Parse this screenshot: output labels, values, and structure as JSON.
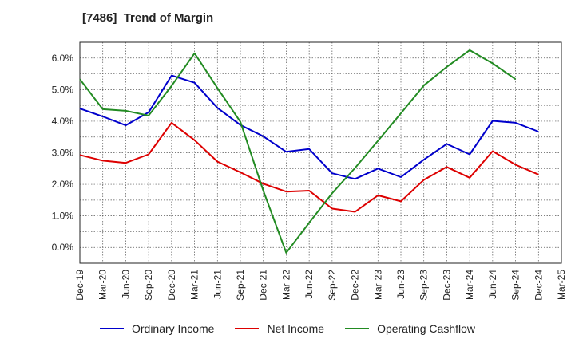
{
  "title": "[7486]  Trend of Margin",
  "chart_data": {
    "type": "line",
    "title": "[7486]  Trend of Margin",
    "xlabel": "",
    "ylabel": "",
    "x": [
      "Dec-19",
      "Mar-20",
      "Jun-20",
      "Sep-20",
      "Dec-20",
      "Mar-21",
      "Jun-21",
      "Sep-21",
      "Dec-21",
      "Mar-22",
      "Jun-22",
      "Sep-22",
      "Dec-22",
      "Mar-23",
      "Jun-23",
      "Sep-23",
      "Dec-23",
      "Mar-24",
      "Jun-24",
      "Sep-24",
      "Dec-24",
      "Mar-25"
    ],
    "ylim": [
      -0.5,
      6.5
    ],
    "yticks": [
      0.0,
      1.0,
      2.0,
      3.0,
      4.0,
      5.0,
      6.0
    ],
    "ytick_labels": [
      "0.0%",
      "1.0%",
      "2.0%",
      "3.0%",
      "4.0%",
      "5.0%",
      "6.0%"
    ],
    "grid": true,
    "legend_position": "bottom",
    "series": [
      {
        "name": "Ordinary Income",
        "color": "#0000cc",
        "values": [
          4.4,
          4.15,
          3.87,
          4.28,
          5.45,
          5.22,
          4.42,
          3.88,
          3.52,
          3.03,
          3.12,
          2.35,
          2.17,
          2.5,
          2.23,
          2.78,
          3.28,
          2.95,
          4.01,
          3.95,
          3.67,
          null
        ]
      },
      {
        "name": "Net Income",
        "color": "#dd0000",
        "values": [
          2.93,
          2.75,
          2.68,
          2.95,
          3.95,
          3.4,
          2.72,
          2.38,
          2.02,
          1.77,
          1.8,
          1.23,
          1.13,
          1.65,
          1.46,
          2.14,
          2.55,
          2.21,
          3.05,
          2.62,
          2.31,
          null
        ]
      },
      {
        "name": "Operating Cashflow",
        "color": "#228b22",
        "values": [
          5.33,
          4.38,
          4.33,
          4.18,
          5.12,
          6.15,
          5.05,
          3.98,
          1.8,
          -0.17,
          0.78,
          1.72,
          2.52,
          3.38,
          4.25,
          5.13,
          5.72,
          6.25,
          5.83,
          5.33,
          null,
          null
        ]
      }
    ]
  }
}
